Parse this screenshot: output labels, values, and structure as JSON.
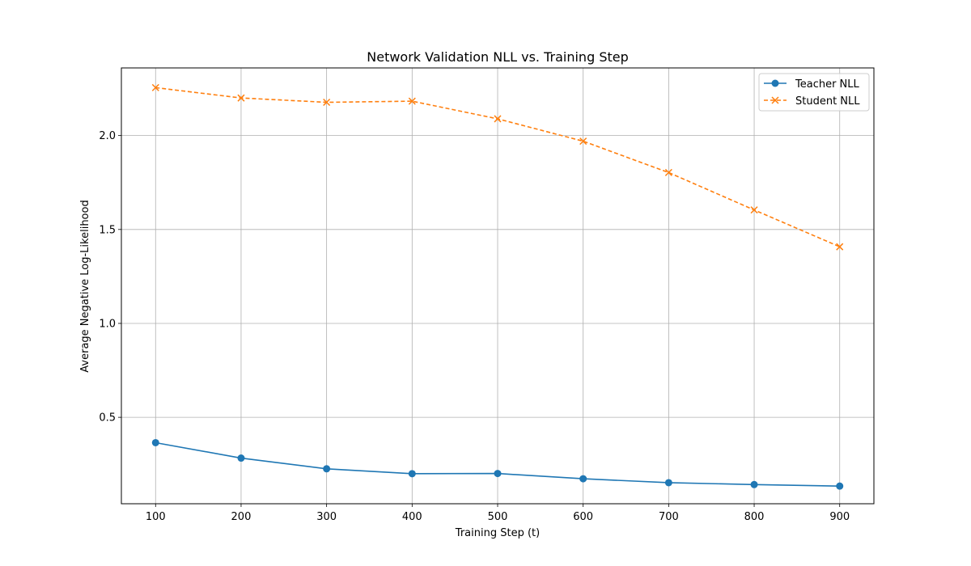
{
  "chart_data": {
    "type": "line",
    "title": "Network Validation NLL vs. Training Step",
    "xlabel": "Training Step (t)",
    "ylabel": "Average Negative Log-Likelihood",
    "x": [
      100,
      200,
      300,
      400,
      500,
      600,
      700,
      800,
      900
    ],
    "x_ticks": [
      "100",
      "200",
      "300",
      "400",
      "500",
      "600",
      "700",
      "800",
      "900"
    ],
    "y_ticks": [
      "0.5",
      "1.0",
      "1.5",
      "2.0"
    ],
    "y_tick_values": [
      0.5,
      1.0,
      1.5,
      2.0
    ],
    "xlim": [
      60,
      940
    ],
    "ylim": [
      0.04,
      2.36
    ],
    "grid": true,
    "legend_position": "top-right",
    "series": [
      {
        "name": "Teacher NLL",
        "color": "#1f77b4",
        "marker": "circle",
        "line_style": "solid",
        "values": [
          0.365,
          0.283,
          0.226,
          0.2,
          0.201,
          0.173,
          0.152,
          0.142,
          0.134
        ]
      },
      {
        "name": "Student NLL",
        "color": "#ff7f0e",
        "marker": "x",
        "line_style": "dashed",
        "values": [
          2.255,
          2.2,
          2.177,
          2.183,
          2.089,
          1.97,
          1.803,
          1.604,
          1.408
        ]
      }
    ]
  }
}
